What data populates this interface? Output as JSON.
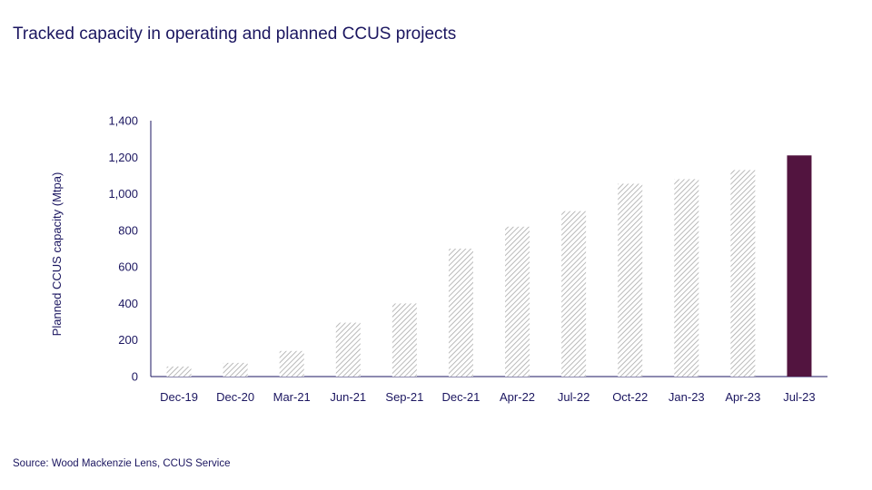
{
  "page": {
    "title": "Tracked capacity in operating and planned CCUS projects",
    "source": "Source: Wood Mackenzie Lens, CCUS Service"
  },
  "colors": {
    "text": "#1b1660",
    "axis": "#1b1660",
    "hatch": "#a9a9a9",
    "highlight": "#52143f"
  },
  "chart_data": {
    "type": "bar",
    "title": "Tracked capacity in operating and planned CCUS projects",
    "xlabel": "",
    "ylabel": "Planned CCUS capacity (Mtpa)",
    "ylim": [
      0,
      1400
    ],
    "yticks": [
      0,
      200,
      400,
      600,
      800,
      1000,
      1200,
      1400
    ],
    "ytick_labels": [
      "0",
      "200",
      "400",
      "600",
      "800",
      "1,000",
      "1,200",
      "1,400"
    ],
    "categories": [
      "Dec-19",
      "Dec-20",
      "Mar-21",
      "Jun-21",
      "Sep-21",
      "Dec-21",
      "Apr-22",
      "Jul-22",
      "Oct-22",
      "Jan-23",
      "Apr-23",
      "Jul-23"
    ],
    "values": [
      55,
      75,
      140,
      295,
      400,
      700,
      820,
      905,
      1055,
      1080,
      1130,
      1210
    ],
    "highlight_category": "Jul-23",
    "bar_style": "hatched grey, last bar solid dark purple",
    "grid": false,
    "legend": "none"
  }
}
